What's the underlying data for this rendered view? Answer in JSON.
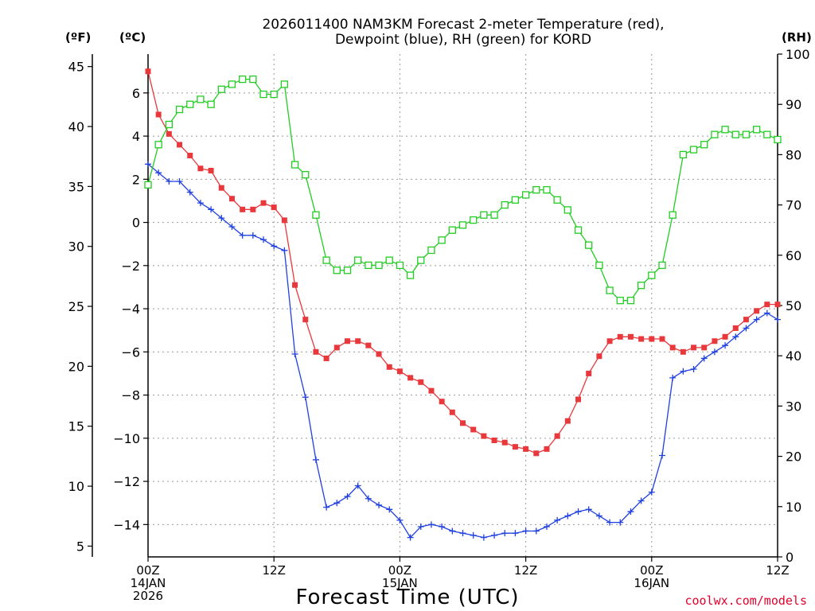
{
  "chart_data": {
    "type": "line",
    "title_line1": "2026011400 NAM3KM Forecast 2-meter Temperature (red),",
    "title_line2": "Dewpoint (blue), RH (green) for KORD",
    "xlabel": "Forecast Time (UTC)",
    "credit": "coolwx.com/models",
    "units": {
      "fahrenheit": "(ºF)",
      "celsius": "(ºC)",
      "rh": "(RH)"
    },
    "x_hours": [
      0,
      1,
      2,
      3,
      4,
      5,
      6,
      7,
      8,
      9,
      10,
      11,
      12,
      13,
      14,
      15,
      16,
      17,
      18,
      19,
      20,
      21,
      22,
      23,
      24,
      25,
      26,
      27,
      28,
      29,
      30,
      31,
      32,
      33,
      34,
      35,
      36,
      37,
      38,
      39,
      40,
      41,
      42,
      43,
      44,
      45,
      46,
      47,
      48,
      49,
      50,
      51,
      52,
      53,
      54,
      55,
      56,
      57,
      58,
      59,
      60
    ],
    "xlim": [
      0,
      60
    ],
    "ylim_celsius": [
      -15.5,
      7.8
    ],
    "ylim_fahrenheit": [
      4.1,
      46.04
    ],
    "ylim_rh": [
      0,
      100
    ],
    "x_ticks": [
      {
        "hour": 0,
        "line1": "00Z",
        "line2": "14JAN",
        "line3": "2026"
      },
      {
        "hour": 12,
        "line1": "12Z",
        "line2": "",
        "line3": ""
      },
      {
        "hour": 24,
        "line1": "00Z",
        "line2": "15JAN",
        "line3": ""
      },
      {
        "hour": 36,
        "line1": "12Z",
        "line2": "",
        "line3": ""
      },
      {
        "hour": 48,
        "line1": "00Z",
        "line2": "16JAN",
        "line3": ""
      },
      {
        "hour": 60,
        "line1": "12Z",
        "line2": "",
        "line3": ""
      }
    ],
    "celsius_ticks": [
      {
        "value": 6,
        "label": "6"
      },
      {
        "value": 4,
        "label": "4"
      },
      {
        "value": 2,
        "label": "2"
      },
      {
        "value": 0,
        "label": "0"
      },
      {
        "value": -2,
        "label": "−2"
      },
      {
        "value": -4,
        "label": "−4"
      },
      {
        "value": -6,
        "label": "−6"
      },
      {
        "value": -8,
        "label": "−8"
      },
      {
        "value": -10,
        "label": "−10"
      },
      {
        "value": -12,
        "label": "−12"
      },
      {
        "value": -14,
        "label": "−14"
      }
    ],
    "fahrenheit_ticks": [
      {
        "value": 45,
        "label": "45"
      },
      {
        "value": 40,
        "label": "40"
      },
      {
        "value": 35,
        "label": "35"
      },
      {
        "value": 30,
        "label": "30"
      },
      {
        "value": 25,
        "label": "25"
      },
      {
        "value": 20,
        "label": "20"
      },
      {
        "value": 15,
        "label": "15"
      },
      {
        "value": 10,
        "label": "10"
      },
      {
        "value": 5,
        "label": "5"
      }
    ],
    "rh_ticks": [
      {
        "value": 100,
        "label": "100"
      },
      {
        "value": 90,
        "label": "90"
      },
      {
        "value": 80,
        "label": "80"
      },
      {
        "value": 70,
        "label": "70"
      },
      {
        "value": 60,
        "label": "60"
      },
      {
        "value": 50,
        "label": "50"
      },
      {
        "value": 40,
        "label": "40"
      },
      {
        "value": 30,
        "label": "30"
      },
      {
        "value": 20,
        "label": "20"
      },
      {
        "value": 10,
        "label": "10"
      },
      {
        "value": 0,
        "label": "0"
      }
    ],
    "series": [
      {
        "name": "Temperature",
        "axis": "celsius",
        "color": "#e8383c",
        "marker": "filled-square",
        "values": [
          7.0,
          5.0,
          4.1,
          3.6,
          3.1,
          2.5,
          2.4,
          1.6,
          1.1,
          0.6,
          0.6,
          0.9,
          0.7,
          0.1,
          -2.9,
          -4.5,
          -6.0,
          -6.3,
          -5.8,
          -5.5,
          -5.5,
          -5.7,
          -6.1,
          -6.7,
          -6.9,
          -7.2,
          -7.4,
          -7.8,
          -8.3,
          -8.8,
          -9.3,
          -9.6,
          -9.9,
          -10.1,
          -10.2,
          -10.4,
          -10.5,
          -10.7,
          -10.5,
          -9.9,
          -9.2,
          -8.2,
          -7.0,
          -6.2,
          -5.5,
          -5.3,
          -5.3,
          -5.4,
          -5.4,
          -5.4,
          -5.8,
          -6.0,
          -5.8,
          -5.8,
          -5.5,
          -5.3,
          -4.9,
          -4.5,
          -4.1,
          -3.8,
          -3.8
        ]
      },
      {
        "name": "Dewpoint",
        "axis": "celsius",
        "color": "#2040e0",
        "marker": "plus",
        "values": [
          2.7,
          2.3,
          1.9,
          1.9,
          1.4,
          0.9,
          0.6,
          0.2,
          -0.2,
          -0.6,
          -0.6,
          -0.8,
          -1.1,
          -1.3,
          -6.1,
          -8.1,
          -11.0,
          -13.2,
          -13.0,
          -12.7,
          -12.2,
          -12.8,
          -13.1,
          -13.3,
          -13.8,
          -14.6,
          -14.1,
          -14.0,
          -14.1,
          -14.3,
          -14.4,
          -14.5,
          -14.6,
          -14.5,
          -14.4,
          -14.4,
          -14.3,
          -14.3,
          -14.1,
          -13.8,
          -13.6,
          -13.4,
          -13.3,
          -13.6,
          -13.9,
          -13.9,
          -13.4,
          -12.9,
          -12.5,
          -10.8,
          -7.2,
          -6.9,
          -6.8,
          -6.3,
          -6.0,
          -5.7,
          -5.3,
          -4.9,
          -4.5,
          -4.2,
          -4.5
        ]
      },
      {
        "name": "RH",
        "axis": "rh",
        "color": "#22cc22",
        "marker": "open-square",
        "values": [
          74,
          82,
          86,
          89,
          90,
          91,
          90,
          93,
          94,
          95,
          95,
          92,
          92,
          94,
          78,
          76,
          68,
          59,
          57,
          57,
          59,
          58,
          58,
          59,
          58,
          56,
          59,
          61,
          63,
          65,
          66,
          67,
          68,
          68,
          70,
          71,
          72,
          73,
          73,
          71,
          69,
          65,
          62,
          58,
          53,
          51,
          51,
          54,
          56,
          58,
          68,
          80,
          81,
          82,
          84,
          85,
          84,
          84,
          85,
          84,
          83
        ]
      }
    ]
  }
}
